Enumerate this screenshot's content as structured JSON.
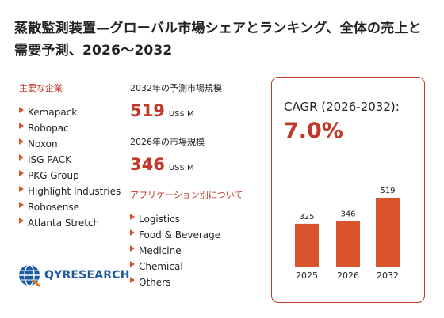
{
  "title": "蒸散監測装置—グローバル市場シェアとランキング、全体の売上と需要予測、2026～2032",
  "vendors_label": "主要な企業",
  "vendors": [
    "Kemapack",
    "Robopac",
    "Noxon",
    "ISG PACK",
    "PKG Group",
    "Highlight Industries",
    "Robosense",
    "Atlanta Stretch"
  ],
  "forecast_label": "2032年の予測市場規模",
  "forecast_value": "519",
  "forecast_unit": "US$ M",
  "current_label": "2026年の市場規模",
  "current_value": "346",
  "current_unit": "US$ M",
  "apps_label": "アプリケーション別について",
  "apps": [
    "Logistics",
    "Food & Beverage",
    "Medicine",
    "Chemical",
    "Others"
  ],
  "cagr_label": "CAGR (2026-2032):",
  "cagr_value": "7.0%",
  "logo_text": "QYRESEARCH",
  "colors": {
    "accent": "#c0392b",
    "bar": "#d9532c",
    "logo": "#1f5aa0"
  },
  "chart_data": {
    "type": "bar",
    "categories": [
      "2025",
      "2026",
      "2032"
    ],
    "values": [
      325,
      346,
      519
    ]
  }
}
